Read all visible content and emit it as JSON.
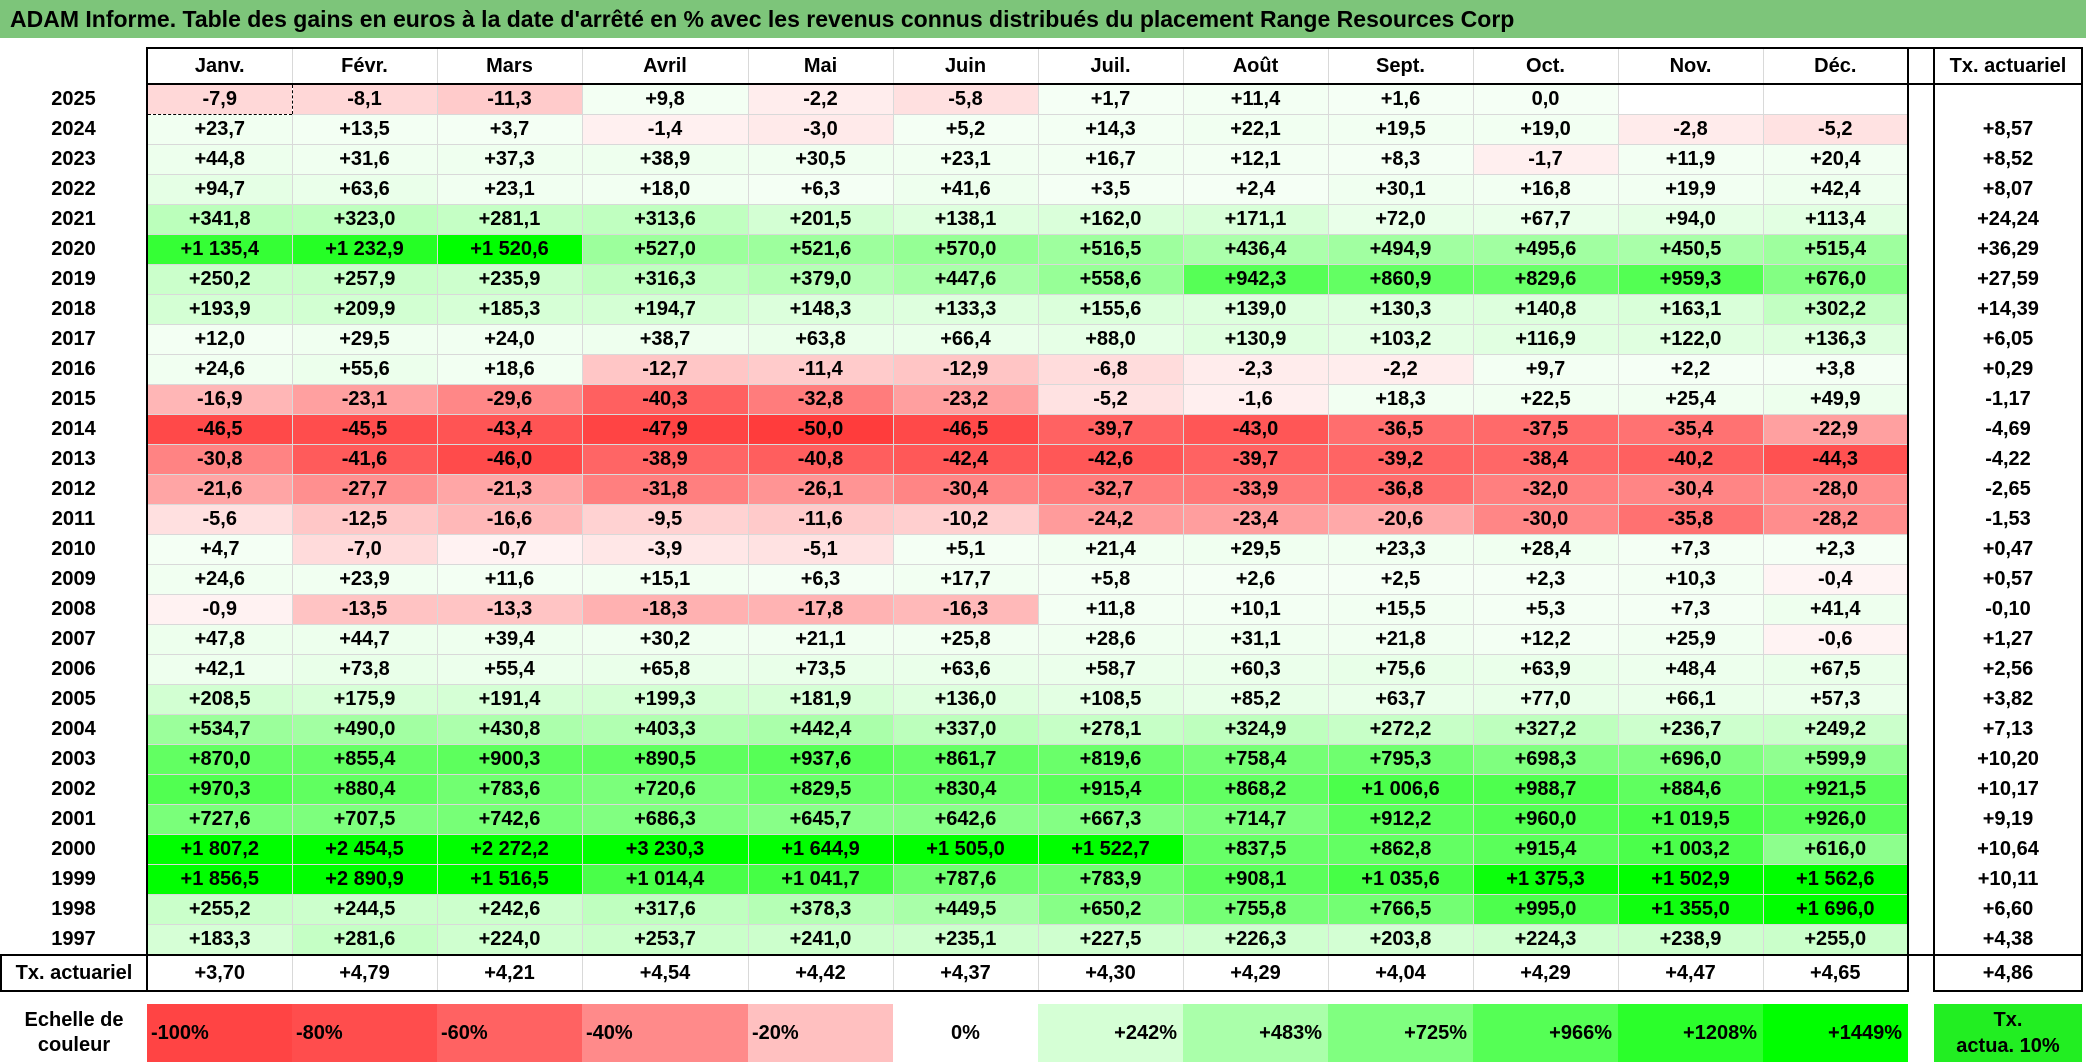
{
  "title": "ADAM Informe. Table des gains en euros à la date d'arrêté en % avec les revenus connus distribués du placement Range Resources Corp",
  "months": [
    "Janv.",
    "Févr.",
    "Mars",
    "Avril",
    "Mai",
    "Juin",
    "Juil.",
    "Août",
    "Sept.",
    "Oct.",
    "Nov.",
    "Déc."
  ],
  "tx_header": "Tx. actuariel",
  "rows": [
    {
      "year": "2025",
      "cells": [
        "-7,9",
        "-8,1",
        "-11,3",
        "+9,8",
        "-2,2",
        "-5,8",
        "+1,7",
        "+11,4",
        "+1,6",
        "0,0",
        "",
        ""
      ],
      "tx": ""
    },
    {
      "year": "2024",
      "cells": [
        "+23,7",
        "+13,5",
        "+3,7",
        "-1,4",
        "-3,0",
        "+5,2",
        "+14,3",
        "+22,1",
        "+19,5",
        "+19,0",
        "-2,8",
        "-5,2"
      ],
      "tx": "+8,57"
    },
    {
      "year": "2023",
      "cells": [
        "+44,8",
        "+31,6",
        "+37,3",
        "+38,9",
        "+30,5",
        "+23,1",
        "+16,7",
        "+12,1",
        "+8,3",
        "-1,7",
        "+11,9",
        "+20,4"
      ],
      "tx": "+8,52"
    },
    {
      "year": "2022",
      "cells": [
        "+94,7",
        "+63,6",
        "+23,1",
        "+18,0",
        "+6,3",
        "+41,6",
        "+3,5",
        "+2,4",
        "+30,1",
        "+16,8",
        "+19,9",
        "+42,4"
      ],
      "tx": "+8,07"
    },
    {
      "year": "2021",
      "cells": [
        "+341,8",
        "+323,0",
        "+281,1",
        "+313,6",
        "+201,5",
        "+138,1",
        "+162,0",
        "+171,1",
        "+72,0",
        "+67,7",
        "+94,0",
        "+113,4"
      ],
      "tx": "+24,24"
    },
    {
      "year": "2020",
      "cells": [
        "+1 135,4",
        "+1 232,9",
        "+1 520,6",
        "+527,0",
        "+521,6",
        "+570,0",
        "+516,5",
        "+436,4",
        "+494,9",
        "+495,6",
        "+450,5",
        "+515,4"
      ],
      "tx": "+36,29"
    },
    {
      "year": "2019",
      "cells": [
        "+250,2",
        "+257,9",
        "+235,9",
        "+316,3",
        "+379,0",
        "+447,6",
        "+558,6",
        "+942,3",
        "+860,9",
        "+829,6",
        "+959,3",
        "+676,0"
      ],
      "tx": "+27,59"
    },
    {
      "year": "2018",
      "cells": [
        "+193,9",
        "+209,9",
        "+185,3",
        "+194,7",
        "+148,3",
        "+133,3",
        "+155,6",
        "+139,0",
        "+130,3",
        "+140,8",
        "+163,1",
        "+302,2"
      ],
      "tx": "+14,39"
    },
    {
      "year": "2017",
      "cells": [
        "+12,0",
        "+29,5",
        "+24,0",
        "+38,7",
        "+63,8",
        "+66,4",
        "+88,0",
        "+130,9",
        "+103,2",
        "+116,9",
        "+122,0",
        "+136,3"
      ],
      "tx": "+6,05"
    },
    {
      "year": "2016",
      "cells": [
        "+24,6",
        "+55,6",
        "+18,6",
        "-12,7",
        "-11,4",
        "-12,9",
        "-6,8",
        "-2,3",
        "-2,2",
        "+9,7",
        "+2,2",
        "+3,8"
      ],
      "tx": "+0,29"
    },
    {
      "year": "2015",
      "cells": [
        "-16,9",
        "-23,1",
        "-29,6",
        "-40,3",
        "-32,8",
        "-23,2",
        "-5,2",
        "-1,6",
        "+18,3",
        "+22,5",
        "+25,4",
        "+49,9"
      ],
      "tx": "-1,17"
    },
    {
      "year": "2014",
      "cells": [
        "-46,5",
        "-45,5",
        "-43,4",
        "-47,9",
        "-50,0",
        "-46,5",
        "-39,7",
        "-43,0",
        "-36,5",
        "-37,5",
        "-35,4",
        "-22,9"
      ],
      "tx": "-4,69"
    },
    {
      "year": "2013",
      "cells": [
        "-30,8",
        "-41,6",
        "-46,0",
        "-38,9",
        "-40,8",
        "-42,4",
        "-42,6",
        "-39,7",
        "-39,2",
        "-38,4",
        "-40,2",
        "-44,3"
      ],
      "tx": "-4,22"
    },
    {
      "year": "2012",
      "cells": [
        "-21,6",
        "-27,7",
        "-21,3",
        "-31,8",
        "-26,1",
        "-30,4",
        "-32,7",
        "-33,9",
        "-36,8",
        "-32,0",
        "-30,4",
        "-28,0"
      ],
      "tx": "-2,65"
    },
    {
      "year": "2011",
      "cells": [
        "-5,6",
        "-12,5",
        "-16,6",
        "-9,5",
        "-11,6",
        "-10,2",
        "-24,2",
        "-23,4",
        "-20,6",
        "-30,0",
        "-35,8",
        "-28,2"
      ],
      "tx": "-1,53"
    },
    {
      "year": "2010",
      "cells": [
        "+4,7",
        "-7,0",
        "-0,7",
        "-3,9",
        "-5,1",
        "+5,1",
        "+21,4",
        "+29,5",
        "+23,3",
        "+28,4",
        "+7,3",
        "+2,3"
      ],
      "tx": "+0,47"
    },
    {
      "year": "2009",
      "cells": [
        "+24,6",
        "+23,9",
        "+11,6",
        "+15,1",
        "+6,3",
        "+17,7",
        "+5,8",
        "+2,6",
        "+2,5",
        "+2,3",
        "+10,3",
        "-0,4"
      ],
      "tx": "+0,57"
    },
    {
      "year": "2008",
      "cells": [
        "-0,9",
        "-13,5",
        "-13,3",
        "-18,3",
        "-17,8",
        "-16,3",
        "+11,8",
        "+10,1",
        "+15,5",
        "+5,3",
        "+7,3",
        "+41,4"
      ],
      "tx": "-0,10"
    },
    {
      "year": "2007",
      "cells": [
        "+47,8",
        "+44,7",
        "+39,4",
        "+30,2",
        "+21,1",
        "+25,8",
        "+28,6",
        "+31,1",
        "+21,8",
        "+12,2",
        "+25,9",
        "-0,6"
      ],
      "tx": "+1,27"
    },
    {
      "year": "2006",
      "cells": [
        "+42,1",
        "+73,8",
        "+55,4",
        "+65,8",
        "+73,5",
        "+63,6",
        "+58,7",
        "+60,3",
        "+75,6",
        "+63,9",
        "+48,4",
        "+67,5"
      ],
      "tx": "+2,56"
    },
    {
      "year": "2005",
      "cells": [
        "+208,5",
        "+175,9",
        "+191,4",
        "+199,3",
        "+181,9",
        "+136,0",
        "+108,5",
        "+85,2",
        "+63,7",
        "+77,0",
        "+66,1",
        "+57,3"
      ],
      "tx": "+3,82"
    },
    {
      "year": "2004",
      "cells": [
        "+534,7",
        "+490,0",
        "+430,8",
        "+403,3",
        "+442,4",
        "+337,0",
        "+278,1",
        "+324,9",
        "+272,2",
        "+327,2",
        "+236,7",
        "+249,2"
      ],
      "tx": "+7,13"
    },
    {
      "year": "2003",
      "cells": [
        "+870,0",
        "+855,4",
        "+900,3",
        "+890,5",
        "+937,6",
        "+861,7",
        "+819,6",
        "+758,4",
        "+795,3",
        "+698,3",
        "+696,0",
        "+599,9"
      ],
      "tx": "+10,20"
    },
    {
      "year": "2002",
      "cells": [
        "+970,3",
        "+880,4",
        "+783,6",
        "+720,6",
        "+829,5",
        "+830,4",
        "+915,4",
        "+868,2",
        "+1 006,6",
        "+988,7",
        "+884,6",
        "+921,5"
      ],
      "tx": "+10,17"
    },
    {
      "year": "2001",
      "cells": [
        "+727,6",
        "+707,5",
        "+742,6",
        "+686,3",
        "+645,7",
        "+642,6",
        "+667,3",
        "+714,7",
        "+912,2",
        "+960,0",
        "+1 019,5",
        "+926,0"
      ],
      "tx": "+9,19"
    },
    {
      "year": "2000",
      "cells": [
        "+1 807,2",
        "+2 454,5",
        "+2 272,2",
        "+3 230,3",
        "+1 644,9",
        "+1 505,0",
        "+1 522,7",
        "+837,5",
        "+862,8",
        "+915,4",
        "+1 003,2",
        "+616,0"
      ],
      "tx": "+10,64"
    },
    {
      "year": "1999",
      "cells": [
        "+1 856,5",
        "+2 890,9",
        "+1 516,5",
        "+1 014,4",
        "+1 041,7",
        "+787,6",
        "+783,9",
        "+908,1",
        "+1 035,6",
        "+1 375,3",
        "+1 502,9",
        "+1 562,6"
      ],
      "tx": "+10,11"
    },
    {
      "year": "1998",
      "cells": [
        "+255,2",
        "+244,5",
        "+242,6",
        "+317,6",
        "+378,3",
        "+449,5",
        "+650,2",
        "+755,8",
        "+766,5",
        "+995,0",
        "+1 355,0",
        "+1 696,0"
      ],
      "tx": "+6,60"
    },
    {
      "year": "1997",
      "cells": [
        "+183,3",
        "+281,6",
        "+224,0",
        "+253,7",
        "+241,0",
        "+235,1",
        "+227,5",
        "+226,3",
        "+203,8",
        "+224,3",
        "+238,9",
        "+255,0"
      ],
      "tx": "+4,38"
    }
  ],
  "totals": {
    "label": "Tx. actuariel",
    "cells": [
      "+3,70",
      "+4,79",
      "+4,21",
      "+4,54",
      "+4,42",
      "+4,37",
      "+4,30",
      "+4,29",
      "+4,04",
      "+4,29",
      "+4,47",
      "+4,65"
    ],
    "tx": "+4,86"
  },
  "scale": {
    "label_line1": "Echelle de",
    "label_line2": "couleur",
    "items": [
      "-100%",
      "-80%",
      "-60%",
      "-40%",
      "-20%",
      "0%",
      "+242%",
      "+483%",
      "+725%",
      "+966%",
      "+1208%",
      "+1449%"
    ],
    "colors": [
      "#ff4444",
      "#ff4d4d",
      "#ff6262",
      "#ff8a8a",
      "#ffc0c0",
      "#ffffff",
      "#d5ffd5",
      "#aaffaa",
      "#80ff80",
      "#55ff55",
      "#2bff2b",
      "#00ff00"
    ],
    "act_line1": "Tx.",
    "act_line2": "actua. 10%",
    "act_color": "#22ee22"
  }
}
